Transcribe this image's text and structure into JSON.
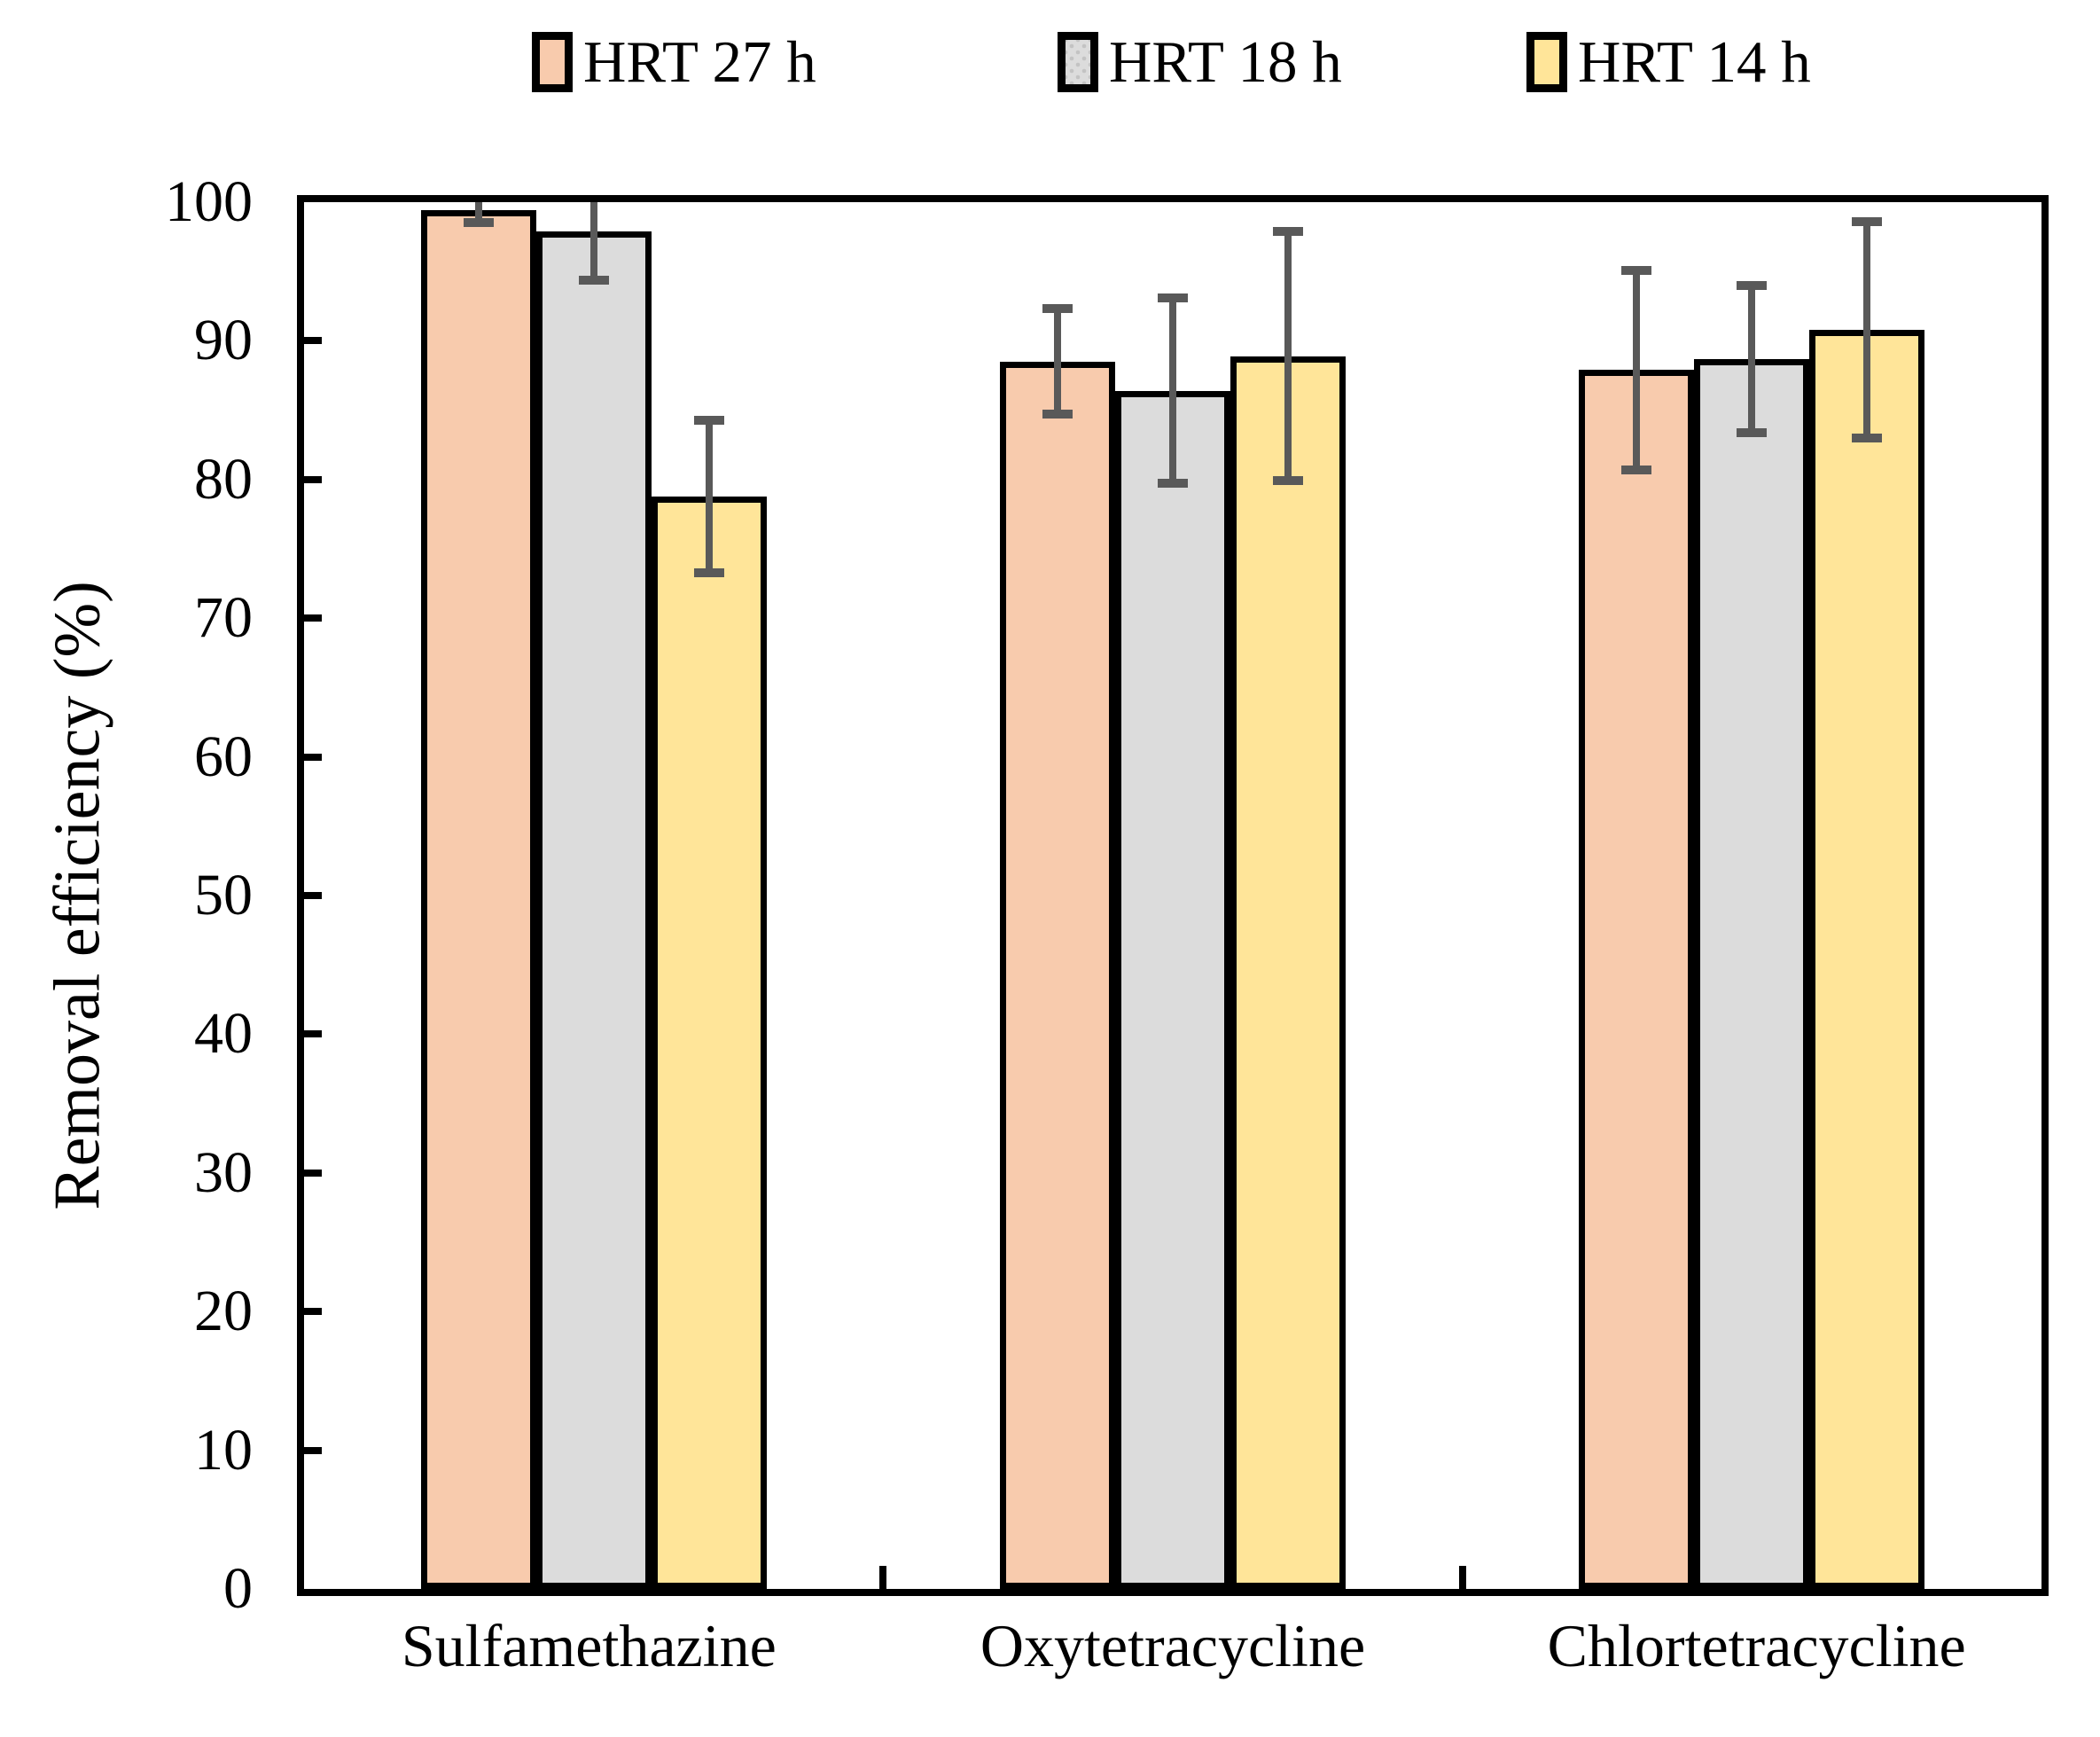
{
  "figure": {
    "kind": "grouped-bar-chart-with-error-bars",
    "background": "#ffffff",
    "axis_color": "#000000",
    "error_bar_color": "#595959"
  },
  "legend": {
    "position": "top",
    "items": [
      {
        "label": "HRT 27 h",
        "color": "#F8CBAD",
        "pattern": "solid"
      },
      {
        "label": "HRT 18 h",
        "color": "#DCDCDC",
        "pattern": "dots"
      },
      {
        "label": "HRT 14 h",
        "color": "#FFE599",
        "pattern": "solid"
      }
    ]
  },
  "y_axis": {
    "label": "Removal efficiency (%)",
    "min": 0,
    "max": 100,
    "step": 10,
    "ticks": [
      "0",
      "10",
      "20",
      "30",
      "40",
      "50",
      "60",
      "70",
      "80",
      "90",
      "100"
    ]
  },
  "chart_data": {
    "type": "bar",
    "title": "",
    "categories": [
      "Sulfamethazine",
      "Oxytetracycline",
      "Chlortetracycline"
    ],
    "series": [
      {
        "name": "HRT 27 h",
        "color": "#F8CBAD",
        "pattern": "solid",
        "values": [
          99.4,
          88.5,
          87.9
        ],
        "errors": [
          0.9,
          3.8,
          7.2
        ]
      },
      {
        "name": "HRT 18 h",
        "color": "#DCDCDC",
        "pattern": "dots",
        "values": [
          97.9,
          86.4,
          88.7
        ],
        "errors": [
          3.5,
          6.7,
          5.3
        ]
      },
      {
        "name": "HRT 14 h",
        "color": "#FFE599",
        "pattern": "solid",
        "values": [
          78.8,
          88.9,
          90.8
        ],
        "errors": [
          5.5,
          9.0,
          7.8
        ]
      }
    ],
    "xlabel": "",
    "ylabel": "Removal efficiency (%)",
    "ylim": [
      0,
      100
    ],
    "grid": false,
    "legend_position": "top",
    "error_bars": "symmetric, dark gray, capped",
    "bar_border": "black"
  }
}
